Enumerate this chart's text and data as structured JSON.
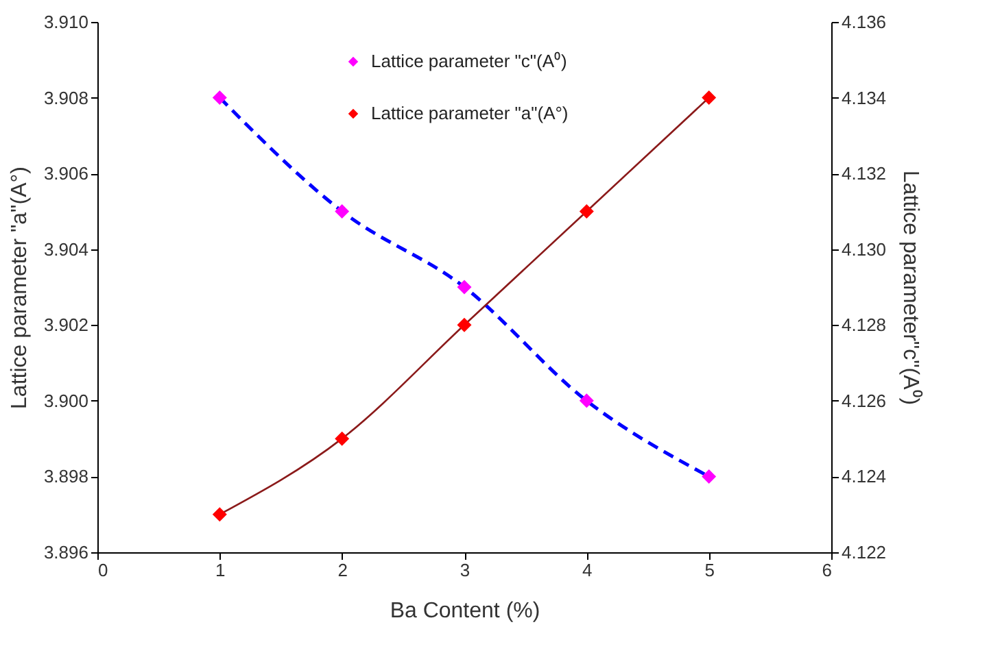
{
  "chart_data": {
    "type": "line",
    "xlabel": "Ba Content (%)",
    "ylabel": "Lattice parameter \"a\"(A°)",
    "y2label": "Lattice parameter\"c\"(A⁰)",
    "x": [
      1,
      2,
      3,
      4,
      5
    ],
    "series": [
      {
        "name": "Lattice parameter \"c\"(A⁰)",
        "axis": "y2",
        "color": "#0000ff",
        "colors": [
          "#ff00ff",
          "#ff00ff",
          "#ff00ff",
          "#ff00ff",
          "#ff00ff"
        ],
        "line_style": "dashed",
        "values": [
          4.134,
          4.131,
          4.129,
          4.126,
          4.124
        ]
      },
      {
        "name": "Lattice parameter \"a\"(A°)",
        "color": "#8b1a1a",
        "colors": [
          "#ff0000",
          "#ff0000",
          "#ff0000",
          "#ff0000",
          "#ff0000"
        ],
        "line_style": "solid",
        "values": [
          3.897,
          3.899,
          3.902,
          3.905,
          3.908
        ]
      }
    ],
    "xlim": [
      0,
      6
    ],
    "xticks": [
      0,
      1,
      2,
      3,
      4,
      5,
      6
    ],
    "ylim": [
      3.896,
      3.91
    ],
    "yticks": [
      3.896,
      3.898,
      {
        "value": 3.9,
        "label": "3.900"
      },
      3.902,
      3.904,
      3.906,
      3.908,
      {
        "value": 3.91,
        "label": "3.910"
      }
    ],
    "y2lim": [
      4.122,
      4.136
    ],
    "y2ticks": [
      4.122,
      4.124,
      4.126,
      4.128,
      {
        "value": 4.13,
        "label": "4.130"
      },
      4.132,
      4.134,
      4.136
    ],
    "marker": "diamond",
    "grid": false,
    "legend": "top"
  }
}
